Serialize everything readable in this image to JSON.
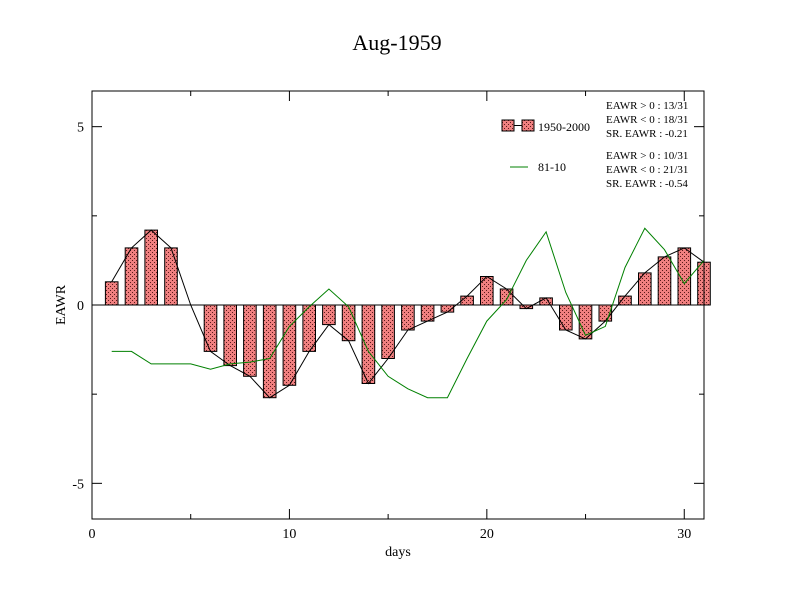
{
  "chart_data": {
    "type": "bar",
    "title": "Aug-1959",
    "xlabel": "days",
    "ylabel": "EAWR",
    "xlim": [
      0,
      31
    ],
    "ylim": [
      -6,
      6
    ],
    "xticks": [
      0,
      10,
      20,
      30
    ],
    "yticks": [
      -5,
      0,
      5
    ],
    "xtick_labels": [
      "0",
      "10",
      "20",
      "30"
    ],
    "ytick_labels": [
      "-5",
      "0",
      "5"
    ],
    "grid": false,
    "legend_position": "top-right",
    "x": [
      1,
      2,
      3,
      4,
      5,
      6,
      7,
      8,
      9,
      10,
      11,
      12,
      13,
      14,
      15,
      16,
      17,
      18,
      19,
      20,
      21,
      22,
      23,
      24,
      25,
      26,
      27,
      28,
      29,
      30,
      31
    ],
    "series": [
      {
        "name": "1950-2000",
        "kind": "bar",
        "color": "#f08080",
        "values": [
          0.65,
          1.6,
          2.1,
          1.6,
          0.0,
          -1.3,
          -1.7,
          -2.0,
          -2.6,
          -2.25,
          -1.3,
          -0.55,
          -1.0,
          -2.2,
          -1.5,
          -0.7,
          -0.45,
          -0.2,
          0.25,
          0.8,
          0.45,
          -0.1,
          0.2,
          -0.7,
          -0.95,
          -0.45,
          0.25,
          0.9,
          1.35,
          1.6,
          1.2
        ]
      },
      {
        "name": "81-10",
        "kind": "line",
        "color": "#008000",
        "values": [
          -1.3,
          -1.3,
          -1.65,
          -1.65,
          -1.65,
          -1.8,
          -1.65,
          -1.6,
          -1.5,
          -0.6,
          -0.05,
          0.45,
          -0.05,
          -1.3,
          -2.0,
          -2.35,
          -2.6,
          -2.6,
          -1.5,
          -0.45,
          0.15,
          1.25,
          2.05,
          0.35,
          -0.85,
          -0.6,
          1.05,
          2.15,
          1.55,
          0.6,
          1.25
        ]
      }
    ],
    "annotations": [
      {
        "series": "1950-2000",
        "lines": [
          "EAWR > 0 : 13/31",
          "EAWR < 0 : 18/31",
          "SR. EAWR : -0.21"
        ]
      },
      {
        "series": "81-10",
        "lines": [
          "EAWR > 0 : 10/31",
          "EAWR < 0 : 21/31",
          "SR. EAWR : -0.54"
        ]
      }
    ]
  }
}
